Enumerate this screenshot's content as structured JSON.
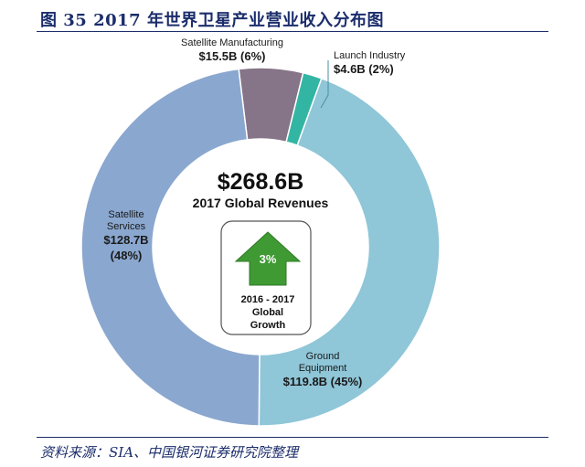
{
  "figure": {
    "title": "图 35   2017 年世界卫星产业营业收入分布图",
    "source": "资料来源：SIA、中国银河证券研究院整理"
  },
  "center": {
    "total": "$268.6B",
    "subtitle": "2017 Global Revenues",
    "growth_value": "3%",
    "growth_label_lines": [
      "2016 - 2017",
      "Global",
      "Growth"
    ]
  },
  "colors": {
    "satellite_services": "#8aa7cf",
    "satellite_manufacturing": "#867488",
    "launch_industry": "#33b5a4",
    "ground_equipment": "#8fc6d8",
    "arrow": "#3f9a33",
    "title": "#1b2d6b"
  },
  "chart_data": {
    "type": "pie",
    "donut": true,
    "title": "",
    "unit": "$B",
    "slices": [
      {
        "name": "Satellite Manufacturing",
        "value": 15.5,
        "percent": 6,
        "label_lines": [
          "Satellite Manufacturing"
        ],
        "value_label": "$15.5B (6%)",
        "color": "#867488"
      },
      {
        "name": "Launch Industry",
        "value": 4.6,
        "percent": 2,
        "label_lines": [
          "Launch Industry"
        ],
        "value_label": "$4.6B (2%)",
        "color": "#33b5a4"
      },
      {
        "name": "Ground Equipment",
        "value": 119.8,
        "percent": 45,
        "label_lines": [
          "Ground",
          "Equipment"
        ],
        "value_label": "$119.8B (45%)",
        "color": "#8fc6d8"
      },
      {
        "name": "Satellite Services",
        "value": 128.7,
        "percent": 48,
        "label_lines": [
          "Satellite",
          "Services"
        ],
        "value_label": "$128.7B",
        "percent_label": "(48%)",
        "color": "#8aa7cf"
      }
    ]
  }
}
